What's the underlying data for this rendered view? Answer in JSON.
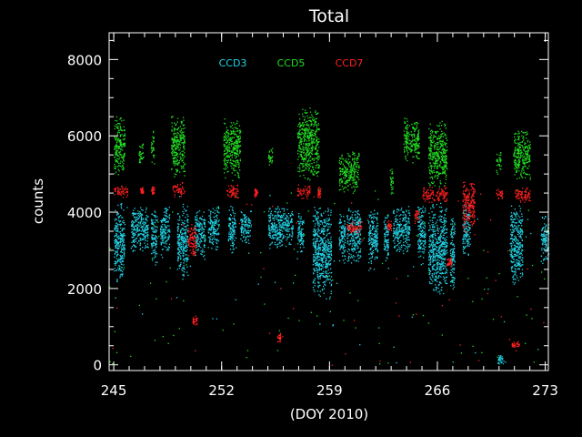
{
  "chart_data": {
    "type": "scatter",
    "title": "Total",
    "xlabel": "(DOY 2010)",
    "ylabel": "counts",
    "xlim": [
      244.7,
      273.2
    ],
    "ylim": [
      -150,
      8700
    ],
    "xticks": [
      245,
      252,
      259,
      266,
      273
    ],
    "xtick_labels": [
      "245",
      "252",
      "259",
      "266",
      "273"
    ],
    "yticks": [
      0,
      2000,
      4000,
      6000,
      8000
    ],
    "ytick_labels": [
      "0",
      "2000",
      "4000",
      "6000",
      "8000"
    ],
    "grid": false,
    "legend_position": "top-left, inside plot",
    "background": "#000000",
    "axis_color": "#ffffff",
    "series": [
      {
        "name": "CCD3",
        "color": "#22d3e6",
        "clusters": [
          {
            "x": [
              245.0,
              245.7
            ],
            "y": [
              2100,
              4300
            ]
          },
          {
            "x": [
              246.1,
              247.2
            ],
            "y": [
              2900,
              4250
            ]
          },
          {
            "x": [
              247.4,
              247.8
            ],
            "y": [
              2600,
              4200
            ]
          },
          {
            "x": [
              248.0,
              248.6
            ],
            "y": [
              2800,
              4250
            ]
          },
          {
            "x": [
              249.1,
              249.8
            ],
            "y": [
              2200,
              4300
            ]
          },
          {
            "x": [
              250.2,
              250.9
            ],
            "y": [
              2700,
              4100
            ]
          },
          {
            "x": [
              251.1,
              251.8
            ],
            "y": [
              3000,
              4200
            ]
          },
          {
            "x": [
              252.4,
              252.9
            ],
            "y": [
              2900,
              4200
            ]
          },
          {
            "x": [
              253.2,
              253.9
            ],
            "y": [
              3100,
              4100
            ]
          },
          {
            "x": [
              255.0,
              256.6
            ],
            "y": [
              3000,
              4200
            ]
          },
          {
            "x": [
              256.9,
              257.3
            ],
            "y": [
              2800,
              4100
            ]
          },
          {
            "x": [
              257.9,
              259.1
            ],
            "y": [
              1700,
              4300
            ]
          },
          {
            "x": [
              259.6,
              260.0
            ],
            "y": [
              2600,
              4100
            ]
          },
          {
            "x": [
              260.1,
              261.0
            ],
            "y": [
              2600,
              4200
            ]
          },
          {
            "x": [
              261.5,
              262.1
            ],
            "y": [
              2400,
              4200
            ]
          },
          {
            "x": [
              262.5,
              262.8
            ],
            "y": [
              2500,
              4100
            ]
          },
          {
            "x": [
              263.1,
              264.2
            ],
            "y": [
              2900,
              4200
            ]
          },
          {
            "x": [
              264.7,
              265.2
            ],
            "y": [
              2600,
              4300
            ]
          },
          {
            "x": [
              265.4,
              266.6
            ],
            "y": [
              1800,
              4300
            ]
          },
          {
            "x": [
              266.8,
              267.1
            ],
            "y": [
              1700,
              4100
            ]
          },
          {
            "x": [
              267.6,
              268.1
            ],
            "y": [
              2800,
              4300
            ]
          },
          {
            "x": [
              270.7,
              271.5
            ],
            "y": [
              2000,
              4300
            ]
          },
          {
            "x": [
              272.7,
              273.2
            ],
            "y": [
              2600,
              4000
            ]
          }
        ]
      },
      {
        "name": "CCD5",
        "color": "#22dd22",
        "clusters": [
          {
            "x": [
              245.0,
              245.7
            ],
            "y": [
              4900,
              6600
            ]
          },
          {
            "x": [
              246.6,
              246.9
            ],
            "y": [
              5200,
              5900
            ]
          },
          {
            "x": [
              247.4,
              247.6
            ],
            "y": [
              5200,
              6200
            ]
          },
          {
            "x": [
              248.7,
              249.6
            ],
            "y": [
              4900,
              6600
            ]
          },
          {
            "x": [
              252.1,
              253.2
            ],
            "y": [
              4800,
              6500
            ]
          },
          {
            "x": [
              255.0,
              255.3
            ],
            "y": [
              5200,
              5700
            ]
          },
          {
            "x": [
              256.9,
              258.3
            ],
            "y": [
              4800,
              6800
            ]
          },
          {
            "x": [
              259.6,
              260.9
            ],
            "y": [
              4500,
              5600
            ]
          },
          {
            "x": [
              262.9,
              263.1
            ],
            "y": [
              4400,
              5200
            ]
          },
          {
            "x": [
              263.8,
              264.8
            ],
            "y": [
              5300,
              6500
            ]
          },
          {
            "x": [
              265.4,
              266.6
            ],
            "y": [
              4600,
              6400
            ]
          },
          {
            "x": [
              269.8,
              270.1
            ],
            "y": [
              5000,
              5600
            ]
          },
          {
            "x": [
              270.9,
              272.0
            ],
            "y": [
              4800,
              6200
            ]
          }
        ]
      },
      {
        "name": "CCD7",
        "color": "#ff2020",
        "clusters": [
          {
            "x": [
              245.0,
              245.9
            ],
            "y": [
              4400,
              4750
            ]
          },
          {
            "x": [
              246.7,
              246.9
            ],
            "y": [
              4450,
              4700
            ]
          },
          {
            "x": [
              247.4,
              247.6
            ],
            "y": [
              4450,
              4700
            ]
          },
          {
            "x": [
              248.8,
              249.6
            ],
            "y": [
              4400,
              4800
            ]
          },
          {
            "x": [
              249.8,
              250.3
            ],
            "y": [
              2700,
              3800
            ]
          },
          {
            "x": [
              250.1,
              250.4
            ],
            "y": [
              1000,
              1350
            ]
          },
          {
            "x": [
              252.3,
              253.1
            ],
            "y": [
              4350,
              4750
            ]
          },
          {
            "x": [
              254.1,
              254.3
            ],
            "y": [
              4400,
              4650
            ]
          },
          {
            "x": [
              255.6,
              255.8
            ],
            "y": [
              600,
              850
            ]
          },
          {
            "x": [
              256.9,
              257.7
            ],
            "y": [
              4350,
              4750
            ]
          },
          {
            "x": [
              258.2,
              258.4
            ],
            "y": [
              4350,
              4700
            ]
          },
          {
            "x": [
              260.1,
              261.1
            ],
            "y": [
              3400,
              3800
            ]
          },
          {
            "x": [
              262.7,
              263.0
            ],
            "y": [
              3500,
              3800
            ]
          },
          {
            "x": [
              264.5,
              264.8
            ],
            "y": [
              3700,
              4150
            ]
          },
          {
            "x": [
              265.0,
              266.6
            ],
            "y": [
              4250,
              4700
            ]
          },
          {
            "x": [
              266.6,
              266.9
            ],
            "y": [
              2550,
              2850
            ]
          },
          {
            "x": [
              267.6,
              268.4
            ],
            "y": [
              3400,
              4900
            ]
          },
          {
            "x": [
              269.8,
              270.2
            ],
            "y": [
              4300,
              4650
            ]
          },
          {
            "x": [
              270.8,
              271.3
            ],
            "y": [
              450,
              650
            ]
          },
          {
            "x": [
              271.0,
              272.0
            ],
            "y": [
              4250,
              4700
            ]
          }
        ]
      }
    ],
    "outlier_clusters": [
      {
        "color": "#22d3e6",
        "x": [
          269.9,
          270.3
        ],
        "y": [
          0,
          300
        ]
      }
    ]
  }
}
